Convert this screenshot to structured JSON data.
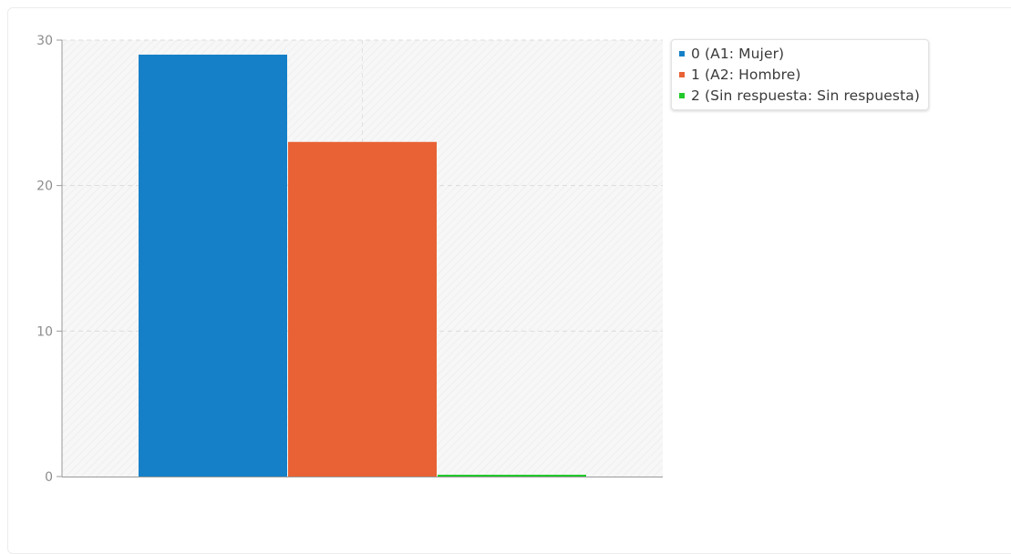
{
  "chart_data": {
    "type": "bar",
    "categories": [
      "0 (A1: Mujer)",
      "1 (A2: Hombre)",
      "2 (Sin respuesta: Sin respuesta)"
    ],
    "values": [
      29,
      23,
      0
    ],
    "colors": [
      "#1580c7",
      "#e86235",
      "#22c92a"
    ],
    "ylim": [
      0,
      30
    ],
    "yticks": [
      "0",
      "10",
      "20",
      "30"
    ],
    "grid": true,
    "legend_position": "right",
    "xlabel": "",
    "ylabel": ""
  },
  "legend": {
    "items": [
      {
        "label": "0 (A1: Mujer)",
        "color": "#1580c7"
      },
      {
        "label": "1 (A2: Hombre)",
        "color": "#e86235"
      },
      {
        "label": "2 (Sin respuesta: Sin respuesta)",
        "color": "#22c92a"
      }
    ]
  }
}
